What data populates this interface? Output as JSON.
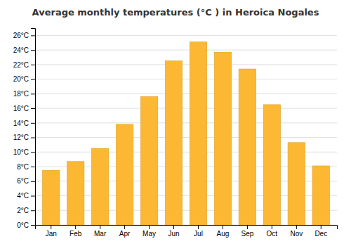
{
  "chart_data": {
    "type": "bar",
    "title": "Average monthly temperatures (°C ) in Heroica Nogales",
    "categories": [
      "Jan",
      "Feb",
      "Mar",
      "Apr",
      "May",
      "Jun",
      "Jul",
      "Aug",
      "Sep",
      "Oct",
      "Nov",
      "Dec"
    ],
    "values": [
      7.5,
      8.7,
      10.5,
      13.8,
      17.6,
      22.5,
      25.1,
      23.7,
      21.4,
      16.5,
      11.3,
      8.1
    ],
    "color": "#FDB833",
    "ylim": [
      0,
      27
    ],
    "yticks": [
      {
        "value": 0,
        "label": "0°C"
      },
      {
        "value": 2,
        "label": "2°C"
      },
      {
        "value": 4,
        "label": "4°C"
      },
      {
        "value": 6,
        "label": "6°C"
      },
      {
        "value": 8,
        "label": "8°C"
      },
      {
        "value": 10,
        "label": "10°C"
      },
      {
        "value": 12,
        "label": "12°C"
      },
      {
        "value": 14,
        "label": "14°C"
      },
      {
        "value": 16,
        "label": "16°C"
      },
      {
        "value": 18,
        "label": "18°C"
      },
      {
        "value": 20,
        "label": "20°C"
      },
      {
        "value": 22,
        "label": "22°C"
      },
      {
        "value": 24,
        "label": "24°C"
      },
      {
        "value": 26,
        "label": "26°C"
      }
    ],
    "grid": true
  }
}
